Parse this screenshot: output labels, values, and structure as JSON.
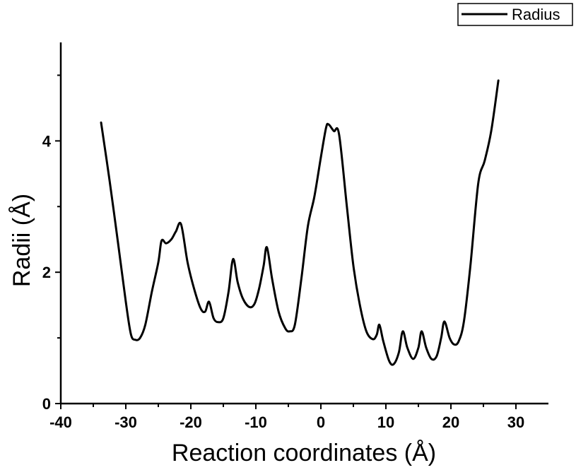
{
  "chart_data": {
    "type": "line",
    "title": "",
    "xlabel": "Reaction coordinates (Å)",
    "ylabel": "Radii (Å)",
    "xlim": [
      -40,
      35
    ],
    "ylim": [
      0,
      5.5
    ],
    "x_ticks": [
      "-40",
      "-30",
      "-20",
      "-10",
      "0",
      "10",
      "20",
      "30"
    ],
    "y_ticks": [
      "0",
      "2",
      "4"
    ],
    "legend": {
      "placement": "top-right",
      "entries": [
        "Radius"
      ]
    },
    "series": [
      {
        "name": "Radius",
        "color": "#000000",
        "points": [
          [
            -33.8,
            4.28
          ],
          [
            -32.5,
            3.4
          ],
          [
            -31.2,
            2.45
          ],
          [
            -30.0,
            1.55
          ],
          [
            -29.2,
            1.05
          ],
          [
            -28.5,
            0.97
          ],
          [
            -27.8,
            1.0
          ],
          [
            -27.0,
            1.2
          ],
          [
            -26.0,
            1.7
          ],
          [
            -25.0,
            2.15
          ],
          [
            -24.5,
            2.48
          ],
          [
            -23.8,
            2.44
          ],
          [
            -23.0,
            2.5
          ],
          [
            -22.3,
            2.62
          ],
          [
            -21.5,
            2.73
          ],
          [
            -20.5,
            2.15
          ],
          [
            -19.5,
            1.75
          ],
          [
            -18.5,
            1.45
          ],
          [
            -17.8,
            1.4
          ],
          [
            -17.2,
            1.55
          ],
          [
            -16.5,
            1.3
          ],
          [
            -15.8,
            1.24
          ],
          [
            -15.0,
            1.3
          ],
          [
            -14.2,
            1.7
          ],
          [
            -13.5,
            2.2
          ],
          [
            -12.8,
            1.85
          ],
          [
            -12.0,
            1.6
          ],
          [
            -11.0,
            1.47
          ],
          [
            -10.2,
            1.52
          ],
          [
            -9.5,
            1.75
          ],
          [
            -8.8,
            2.1
          ],
          [
            -8.3,
            2.38
          ],
          [
            -7.5,
            1.9
          ],
          [
            -6.5,
            1.4
          ],
          [
            -5.5,
            1.15
          ],
          [
            -4.8,
            1.1
          ],
          [
            -4.0,
            1.2
          ],
          [
            -3.0,
            1.9
          ],
          [
            -2.0,
            2.7
          ],
          [
            -1.0,
            3.15
          ],
          [
            0.0,
            3.75
          ],
          [
            0.8,
            4.2
          ],
          [
            1.2,
            4.25
          ],
          [
            2.0,
            4.15
          ],
          [
            2.8,
            4.1
          ],
          [
            4.0,
            3.0
          ],
          [
            5.0,
            2.1
          ],
          [
            6.0,
            1.5
          ],
          [
            7.0,
            1.1
          ],
          [
            8.0,
            0.98
          ],
          [
            8.6,
            1.05
          ],
          [
            9.0,
            1.2
          ],
          [
            9.6,
            0.95
          ],
          [
            10.5,
            0.65
          ],
          [
            11.2,
            0.6
          ],
          [
            12.0,
            0.78
          ],
          [
            12.6,
            1.1
          ],
          [
            13.3,
            0.85
          ],
          [
            14.2,
            0.68
          ],
          [
            15.0,
            0.85
          ],
          [
            15.5,
            1.1
          ],
          [
            16.2,
            0.85
          ],
          [
            17.0,
            0.68
          ],
          [
            17.8,
            0.72
          ],
          [
            18.5,
            1.0
          ],
          [
            19.0,
            1.25
          ],
          [
            19.8,
            1.0
          ],
          [
            20.5,
            0.9
          ],
          [
            21.2,
            0.95
          ],
          [
            22.0,
            1.25
          ],
          [
            23.0,
            2.1
          ],
          [
            24.2,
            3.35
          ],
          [
            25.2,
            3.7
          ],
          [
            26.2,
            4.15
          ],
          [
            27.3,
            4.92
          ]
        ]
      }
    ]
  }
}
